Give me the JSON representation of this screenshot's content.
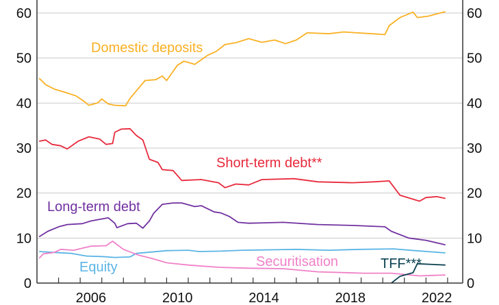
{
  "chart_data": {
    "type": "line",
    "title": "",
    "xlabel": "",
    "ylabel": "",
    "xlim": [
      2004,
      2023.7
    ],
    "ylim": [
      0,
      60
    ],
    "yticks": [
      0,
      10,
      20,
      30,
      40,
      50,
      60
    ],
    "xtick_labels": [
      "2006",
      "2010",
      "2014",
      "2018",
      "2022"
    ],
    "xtick_years": [
      2006,
      2010,
      2014,
      2018,
      2022
    ],
    "grid": true,
    "legend": "inline labels",
    "series": [
      {
        "name": "Domestic deposits",
        "color": "#f9b023",
        "points": [
          [
            2004.1,
            45.5
          ],
          [
            2004.4,
            44.1
          ],
          [
            2004.8,
            43.1
          ],
          [
            2005.3,
            42.4
          ],
          [
            2005.8,
            41.6
          ],
          [
            2006.2,
            40.3
          ],
          [
            2006.4,
            39.5
          ],
          [
            2006.8,
            40
          ],
          [
            2007,
            40.9
          ],
          [
            2007.3,
            39.8
          ],
          [
            2007.6,
            39.5
          ],
          [
            2008.1,
            39.4
          ],
          [
            2008.3,
            41
          ],
          [
            2008.6,
            42.7
          ],
          [
            2009,
            45
          ],
          [
            2009.5,
            45.2
          ],
          [
            2009.8,
            46
          ],
          [
            2010,
            45
          ],
          [
            2010.5,
            48.4
          ],
          [
            2010.8,
            49.3
          ],
          [
            2011.3,
            48.6
          ],
          [
            2011.6,
            49.6
          ],
          [
            2011.9,
            50.6
          ],
          [
            2012.3,
            51.5
          ],
          [
            2012.7,
            53
          ],
          [
            2013.2,
            53.4
          ],
          [
            2013.8,
            54.3
          ],
          [
            2014.4,
            53.5
          ],
          [
            2015,
            54
          ],
          [
            2015.5,
            53.2
          ],
          [
            2016,
            54
          ],
          [
            2016.5,
            55.6
          ],
          [
            2017,
            55.5
          ],
          [
            2017.5,
            55.4
          ],
          [
            2018.2,
            55.8
          ],
          [
            2018.8,
            55.6
          ],
          [
            2019.5,
            55.4
          ],
          [
            2020.1,
            55.2
          ],
          [
            2020.3,
            57.2
          ],
          [
            2020.8,
            59
          ],
          [
            2021.4,
            60.2
          ],
          [
            2021.6,
            59
          ],
          [
            2022.1,
            59.3
          ],
          [
            2022.9,
            60.3
          ]
        ]
      },
      {
        "name": "Short-term debt**",
        "color": "#e8283b",
        "points": [
          [
            2004.1,
            31.5
          ],
          [
            2004.4,
            31.8
          ],
          [
            2004.7,
            30.8
          ],
          [
            2005.1,
            30.5
          ],
          [
            2005.4,
            29.8
          ],
          [
            2005.9,
            31.5
          ],
          [
            2006.4,
            32.5
          ],
          [
            2006.9,
            32
          ],
          [
            2007.2,
            30.8
          ],
          [
            2007.5,
            31
          ],
          [
            2007.6,
            33.5
          ],
          [
            2007.9,
            34.2
          ],
          [
            2008.3,
            34.3
          ],
          [
            2008.6,
            32.8
          ],
          [
            2008.9,
            31.8
          ],
          [
            2009.2,
            27.5
          ],
          [
            2009.6,
            26.8
          ],
          [
            2009.8,
            25.2
          ],
          [
            2010.3,
            25
          ],
          [
            2010.7,
            22.8
          ],
          [
            2011.6,
            23
          ],
          [
            2012.4,
            22.3
          ],
          [
            2012.7,
            21.2
          ],
          [
            2013.2,
            22
          ],
          [
            2013.8,
            21.8
          ],
          [
            2014.4,
            23
          ],
          [
            2015.9,
            23.2
          ],
          [
            2017,
            22.5
          ],
          [
            2018.6,
            22.3
          ],
          [
            2019.6,
            22.5
          ],
          [
            2020.3,
            22.7
          ],
          [
            2020.8,
            19.5
          ],
          [
            2021.7,
            18.2
          ],
          [
            2022,
            19
          ],
          [
            2022.5,
            19.2
          ],
          [
            2022.9,
            18.8
          ]
        ]
      },
      {
        "name": "Long-term debt",
        "color": "#7030a0",
        "points": [
          [
            2004.1,
            10.3
          ],
          [
            2004.5,
            11.5
          ],
          [
            2005,
            12.5
          ],
          [
            2005.4,
            13
          ],
          [
            2006.1,
            13.2
          ],
          [
            2006.5,
            13.8
          ],
          [
            2007.3,
            14.5
          ],
          [
            2007.6,
            13.3
          ],
          [
            2007.7,
            12.3
          ],
          [
            2008.2,
            13.2
          ],
          [
            2008.6,
            13.3
          ],
          [
            2008.9,
            12.2
          ],
          [
            2009.2,
            13.8
          ],
          [
            2009.4,
            15.5
          ],
          [
            2009.8,
            17.5
          ],
          [
            2010.3,
            17.8
          ],
          [
            2010.7,
            17.8
          ],
          [
            2011.3,
            17
          ],
          [
            2011.6,
            17.2
          ],
          [
            2012.2,
            15.8
          ],
          [
            2012.5,
            15.6
          ],
          [
            2012.9,
            14.8
          ],
          [
            2013.3,
            13.5
          ],
          [
            2013.8,
            13.3
          ],
          [
            2015.4,
            13.5
          ],
          [
            2017,
            13
          ],
          [
            2018.6,
            12.8
          ],
          [
            2020.1,
            12.5
          ],
          [
            2020.4,
            11.5
          ],
          [
            2021.2,
            10
          ],
          [
            2022,
            9.5
          ],
          [
            2022.9,
            8.5
          ]
        ]
      },
      {
        "name": "Equity",
        "color": "#5ab4e5",
        "points": [
          [
            2004.1,
            7
          ],
          [
            2004.8,
            6.8
          ],
          [
            2005.6,
            6.6
          ],
          [
            2006.3,
            6
          ],
          [
            2007,
            5.9
          ],
          [
            2007.6,
            5.7
          ],
          [
            2008.3,
            5.8
          ],
          [
            2008.6,
            6.6
          ],
          [
            2009.3,
            6.9
          ],
          [
            2010,
            7.2
          ],
          [
            2011,
            7.3
          ],
          [
            2011.5,
            7
          ],
          [
            2012.5,
            7.1
          ],
          [
            2013.5,
            7.3
          ],
          [
            2015,
            7.4
          ],
          [
            2016,
            7.5
          ],
          [
            2017.5,
            7.3
          ],
          [
            2019,
            7.5
          ],
          [
            2020.5,
            7.6
          ],
          [
            2021.5,
            7.2
          ],
          [
            2022.9,
            6.7
          ]
        ]
      },
      {
        "name": "Securitisation",
        "color": "#f080c8",
        "points": [
          [
            2004.1,
            5.5
          ],
          [
            2004.3,
            6.5
          ],
          [
            2004.8,
            6.8
          ],
          [
            2005.1,
            7.5
          ],
          [
            2005.7,
            7.3
          ],
          [
            2006.5,
            8.2
          ],
          [
            2007.2,
            8.3
          ],
          [
            2007.5,
            9.3
          ],
          [
            2008,
            7.5
          ],
          [
            2008.7,
            6.2
          ],
          [
            2009.3,
            5.5
          ],
          [
            2010,
            4.5
          ],
          [
            2011,
            4
          ],
          [
            2012.4,
            3.5
          ],
          [
            2013.8,
            3.3
          ],
          [
            2015.4,
            3.2
          ],
          [
            2017,
            2.5
          ],
          [
            2019.1,
            2.2
          ],
          [
            2020.4,
            2.2
          ],
          [
            2021.7,
            1.6
          ],
          [
            2022.9,
            1.8
          ]
        ]
      },
      {
        "name": "TFF***",
        "color": "#0a4050",
        "points": [
          [
            2020.4,
            0
          ],
          [
            2020.8,
            1.5
          ],
          [
            2021.4,
            2.3
          ],
          [
            2021.6,
            4.3
          ],
          [
            2022.9,
            4
          ]
        ]
      }
    ],
    "annotations": [
      {
        "series": "Domestic deposits",
        "text": "Domestic deposits"
      },
      {
        "series": "Short-term debt**",
        "text": "Short-term debt**"
      },
      {
        "series": "Long-term debt",
        "text": "Long-term debt"
      },
      {
        "series": "Equity",
        "text": "Equity"
      },
      {
        "series": "Securitisation",
        "text": "Securitisation"
      },
      {
        "series": "TFF***",
        "text": "TFF***"
      }
    ]
  }
}
